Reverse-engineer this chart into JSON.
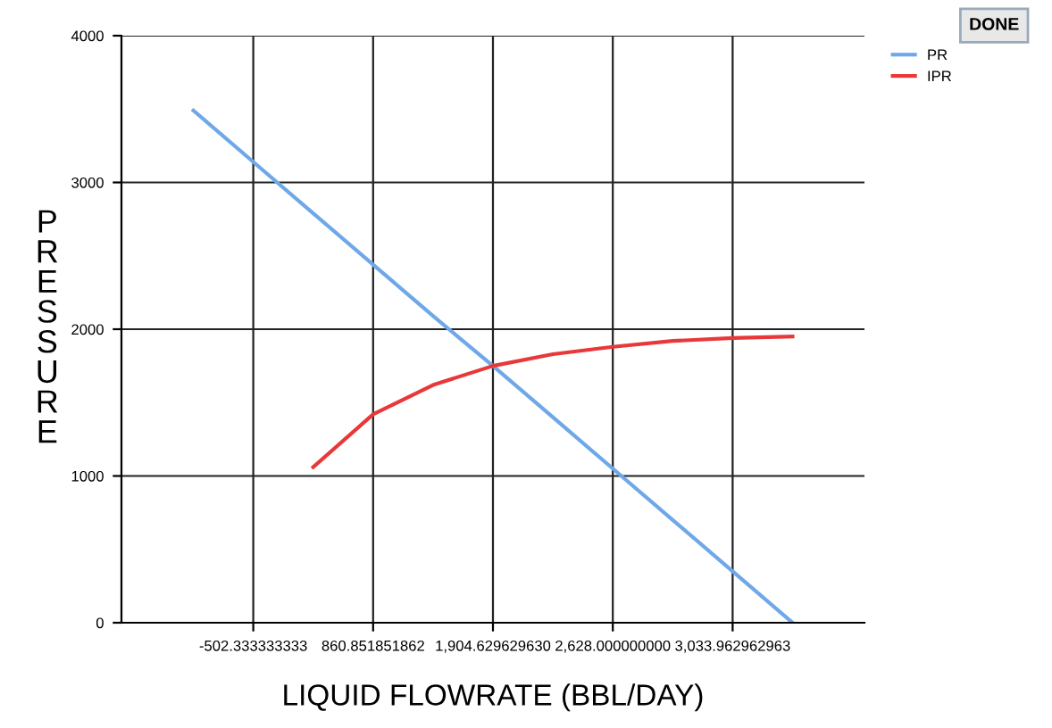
{
  "chart_data": {
    "type": "line",
    "xlabel": "LIQUID FLOWRATE (BBL/DAY)",
    "ylabel": "PRESSURE",
    "categories": [
      null,
      null,
      "-502.333333333",
      null,
      "860.851851862",
      null,
      "1,904.629629630",
      null,
      "2,628.000000000",
      null,
      "3,033.962962963",
      null,
      null
    ],
    "ylim": [
      0,
      4000
    ],
    "yticks": [
      0,
      1000,
      2000,
      3000,
      4000
    ],
    "grid": true,
    "legend": "top right",
    "annotations": [
      "DONE"
    ],
    "series": [
      {
        "name": "PR",
        "color": "#6fa8e8",
        "values": [
          null,
          3490,
          3140,
          2790,
          2440,
          2090,
          1750,
          1400,
          1050,
          700,
          350,
          0,
          null
        ]
      },
      {
        "name": "IPR",
        "color": "#e8383a",
        "values": [
          null,
          null,
          null,
          1060,
          1420,
          1620,
          1750,
          1830,
          1880,
          1920,
          1940,
          1950,
          null
        ]
      }
    ]
  }
}
